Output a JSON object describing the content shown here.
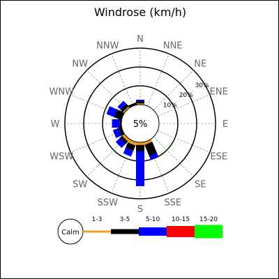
{
  "chart_data": {
    "type": "windrose",
    "title": "Windrose (km/h)",
    "directions": [
      "N",
      "NNE",
      "NE",
      "ENE",
      "E",
      "ESE",
      "SE",
      "SSE",
      "S",
      "SSW",
      "SW",
      "WSW",
      "W",
      "WNW",
      "NW",
      "NNW"
    ],
    "ring_labels": [
      "10%",
      "20%",
      "30%"
    ],
    "calm": {
      "label": "5%",
      "legend_label": "Calm",
      "percent": 5
    },
    "bins": [
      {
        "name": "1-3",
        "color": "#f0a020"
      },
      {
        "name": "3-5",
        "color": "#000000"
      },
      {
        "name": "5-10",
        "color": "#0000ff"
      },
      {
        "name": "10-15",
        "color": "#ff0000"
      },
      {
        "name": "15-20",
        "color": "#00ff00"
      }
    ],
    "values": {
      "N": [
        0.6,
        1.2,
        0.8,
        0,
        0
      ],
      "NNE": [
        0,
        0,
        0,
        0,
        0
      ],
      "NE": [
        0,
        0,
        0,
        0,
        0
      ],
      "ENE": [
        0,
        0,
        0,
        0,
        0
      ],
      "E": [
        0,
        0,
        0,
        0,
        0
      ],
      "ESE": [
        0,
        0,
        0,
        0,
        0
      ],
      "SE": [
        0,
        0,
        0,
        0,
        0
      ],
      "SSE": [
        1.4,
        6.5,
        2.2,
        0,
        0
      ],
      "S": [
        1.4,
        3.4,
        18.5,
        0,
        0
      ],
      "SSW": [
        1.8,
        3.0,
        3.3,
        0,
        0
      ],
      "SW": [
        1.4,
        1.8,
        3.0,
        0,
        0
      ],
      "WSW": [
        0,
        1.8,
        3.0,
        0,
        0
      ],
      "W": [
        0,
        1.0,
        4.0,
        0,
        0
      ],
      "WNW": [
        0,
        4.0,
        4.5,
        0,
        0
      ],
      "NW": [
        0.8,
        1.8,
        2.2,
        0,
        0
      ],
      "NNW": [
        0,
        1.2,
        0,
        0,
        0
      ]
    }
  }
}
